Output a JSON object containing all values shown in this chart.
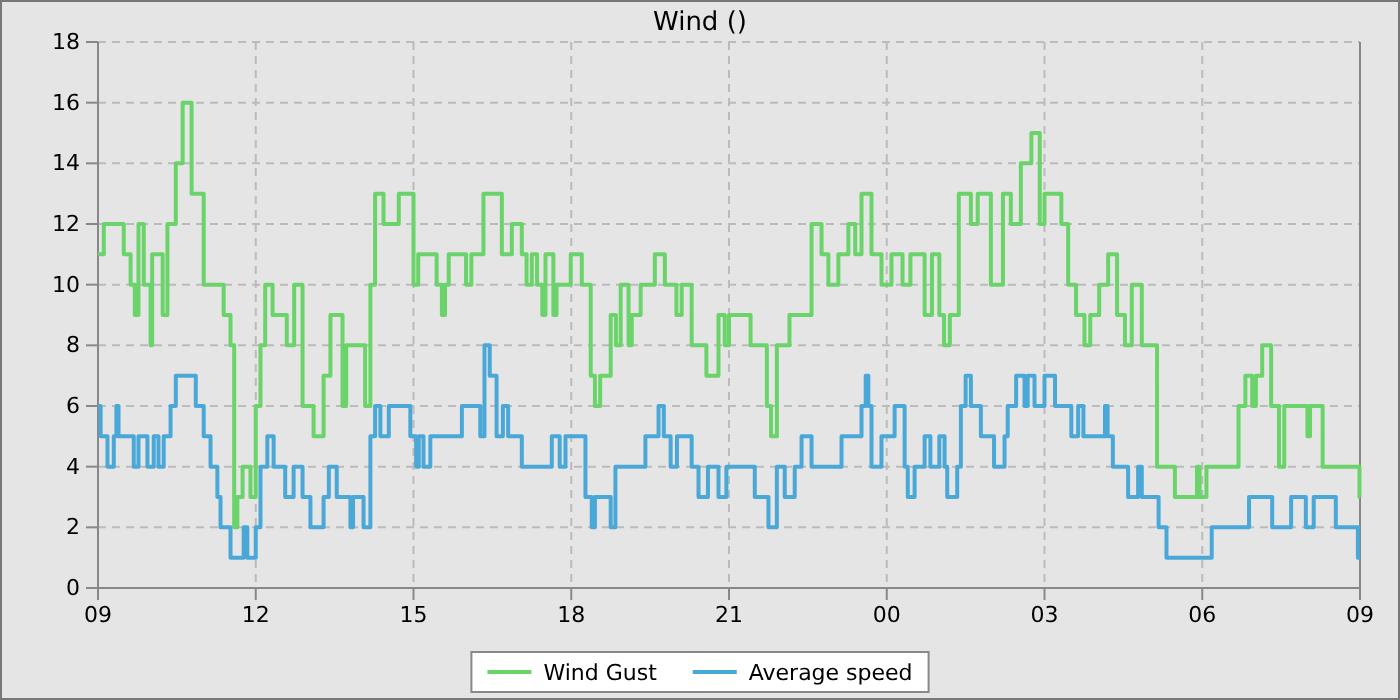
{
  "chart_data": {
    "type": "step",
    "title": "Wind ()",
    "xlim": [
      9,
      33
    ],
    "xticks": [
      {
        "value": 9,
        "label": "09"
      },
      {
        "value": 12,
        "label": "12"
      },
      {
        "value": 15,
        "label": "15"
      },
      {
        "value": 18,
        "label": "18"
      },
      {
        "value": 21,
        "label": "21"
      },
      {
        "value": 24,
        "label": "00"
      },
      {
        "value": 27,
        "label": "03"
      },
      {
        "value": 30,
        "label": "06"
      },
      {
        "value": 33,
        "label": "09"
      }
    ],
    "ylim": [
      0,
      18
    ],
    "yticks": [
      0,
      2,
      4,
      6,
      8,
      10,
      12,
      14,
      16,
      18
    ],
    "grid": true,
    "legend": "bottom",
    "line_style": "solid",
    "series": [
      {
        "name": "Wind Gust",
        "color": "#6ad46a",
        "x": [
          9.0,
          9.11,
          9.49,
          9.62,
          9.7,
          9.77,
          9.87,
          10.0,
          10.03,
          10.23,
          10.32,
          10.48,
          10.61,
          10.78,
          11.01,
          11.39,
          11.52,
          11.59,
          11.65,
          11.75,
          11.9,
          12.0,
          12.09,
          12.18,
          12.32,
          12.59,
          12.73,
          12.89,
          13.1,
          13.29,
          13.42,
          13.65,
          13.72,
          14.08,
          14.18,
          14.27,
          14.43,
          14.72,
          15.0,
          15.09,
          15.44,
          15.54,
          15.6,
          15.67,
          16.0,
          16.1,
          16.33,
          16.68,
          16.87,
          17.06,
          17.15,
          17.25,
          17.35,
          17.45,
          17.51,
          17.66,
          17.72,
          17.99,
          18.2,
          18.37,
          18.45,
          18.55,
          18.75,
          18.85,
          18.94,
          19.09,
          19.15,
          19.32,
          19.59,
          19.78,
          20.0,
          20.1,
          20.29,
          20.57,
          20.8,
          20.92,
          21.0,
          21.41,
          21.72,
          21.8,
          21.91,
          22.15,
          22.57,
          22.76,
          22.89,
          23.08,
          23.27,
          23.4,
          23.52,
          23.71,
          23.9,
          24.09,
          24.3,
          24.45,
          24.72,
          24.86,
          25.0,
          25.09,
          25.2,
          25.37,
          25.6,
          25.73,
          25.98,
          26.21,
          26.36,
          26.55,
          26.75,
          26.91,
          27.0,
          27.32,
          27.45,
          27.6,
          27.76,
          27.87,
          28.04,
          28.21,
          28.38,
          28.53,
          28.66,
          28.85,
          29.14,
          29.48,
          29.9,
          29.95,
          30.08,
          30.69,
          30.82,
          30.95,
          31.02,
          31.14,
          31.31,
          31.46,
          31.56,
          32.0,
          32.05,
          32.29,
          32.99,
          33
        ],
        "values": [
          11,
          12,
          11,
          10,
          9,
          12,
          10,
          8,
          11,
          9,
          12,
          14,
          16,
          13,
          10,
          9,
          8,
          2,
          3,
          4,
          3,
          6,
          8,
          10,
          9,
          8,
          10,
          6,
          5,
          7,
          9,
          6,
          8,
          6,
          10,
          13,
          12,
          13,
          10,
          11,
          10,
          9,
          10,
          11,
          10,
          11,
          13,
          11,
          12,
          11,
          10,
          11,
          10,
          9,
          11,
          9,
          10,
          11,
          10,
          7,
          6,
          7,
          9,
          8,
          10,
          8,
          9,
          10,
          11,
          10,
          9,
          10,
          8,
          7,
          9,
          8,
          9,
          8,
          6,
          5,
          8,
          9,
          12,
          11,
          10,
          11,
          12,
          11,
          13,
          11,
          10,
          11,
          10,
          11,
          9,
          11,
          9,
          8,
          9,
          13,
          12,
          13,
          10,
          13,
          12,
          14,
          15,
          12,
          13,
          12,
          10,
          9,
          8,
          9,
          10,
          11,
          9,
          8,
          10,
          8,
          4,
          3,
          4,
          3,
          4,
          6,
          7,
          6,
          7,
          8,
          6,
          4,
          6,
          5,
          6,
          4,
          3,
          3
        ]
      },
      {
        "name": "Average speed",
        "color": "#4aa8d8",
        "x": [
          9.0,
          9.05,
          9.18,
          9.3,
          9.35,
          9.39,
          9.68,
          9.77,
          9.94,
          10.06,
          10.15,
          10.25,
          10.38,
          10.48,
          10.86,
          11.01,
          11.14,
          11.27,
          11.33,
          11.52,
          11.77,
          11.84,
          12.0,
          12.09,
          12.22,
          12.34,
          12.56,
          12.72,
          12.89,
          13.04,
          13.29,
          13.39,
          13.54,
          13.8,
          13.85,
          14.05,
          14.18,
          14.27,
          14.37,
          14.53,
          14.94,
          15.05,
          15.1,
          15.19,
          15.32,
          15.92,
          16.27,
          16.35,
          16.45,
          16.58,
          16.7,
          16.8,
          17.06,
          17.63,
          17.78,
          17.89,
          18.27,
          18.39,
          18.45,
          18.75,
          18.84,
          19.41,
          19.66,
          19.76,
          19.89,
          20.01,
          20.29,
          20.42,
          20.6,
          20.8,
          20.95,
          21.49,
          21.75,
          21.91,
          22.06,
          22.25,
          22.38,
          22.57,
          23.14,
          23.52,
          23.6,
          23.65,
          23.71,
          23.9,
          24.15,
          24.34,
          24.4,
          24.53,
          24.72,
          24.83,
          25.0,
          25.1,
          25.15,
          25.34,
          25.41,
          25.5,
          25.6,
          25.79,
          26.04,
          26.24,
          26.3,
          26.46,
          26.62,
          26.68,
          26.81,
          27.0,
          27.2,
          27.51,
          27.64,
          27.74,
          28.15,
          28.2,
          28.3,
          28.59,
          28.78,
          28.85,
          29.17,
          29.32,
          30.18,
          30.89,
          31.33,
          31.69,
          31.97,
          32.12,
          32.54,
          32.96,
          33
        ],
        "values": [
          6,
          5,
          4,
          5,
          6,
          5,
          4,
          5,
          4,
          5,
          4,
          5,
          6,
          7,
          6,
          5,
          4,
          3,
          2,
          1,
          2,
          1,
          2,
          4,
          5,
          4,
          3,
          4,
          3,
          2,
          3,
          4,
          3,
          2,
          3,
          2,
          5,
          6,
          5,
          6,
          5,
          4,
          5,
          4,
          5,
          6,
          5,
          8,
          7,
          5,
          6,
          5,
          4,
          5,
          4,
          5,
          3,
          2,
          3,
          2,
          4,
          5,
          6,
          5,
          4,
          5,
          4,
          3,
          4,
          3,
          4,
          3,
          2,
          4,
          3,
          4,
          5,
          4,
          5,
          6,
          7,
          6,
          4,
          5,
          6,
          4,
          3,
          4,
          5,
          4,
          5,
          4,
          3,
          4,
          6,
          7,
          6,
          5,
          4,
          5,
          6,
          7,
          6,
          7,
          6,
          7,
          6,
          5,
          6,
          5,
          6,
          5,
          4,
          3,
          4,
          3,
          2,
          1,
          2,
          3,
          2,
          3,
          2,
          3,
          2,
          1,
          1
        ]
      }
    ]
  }
}
